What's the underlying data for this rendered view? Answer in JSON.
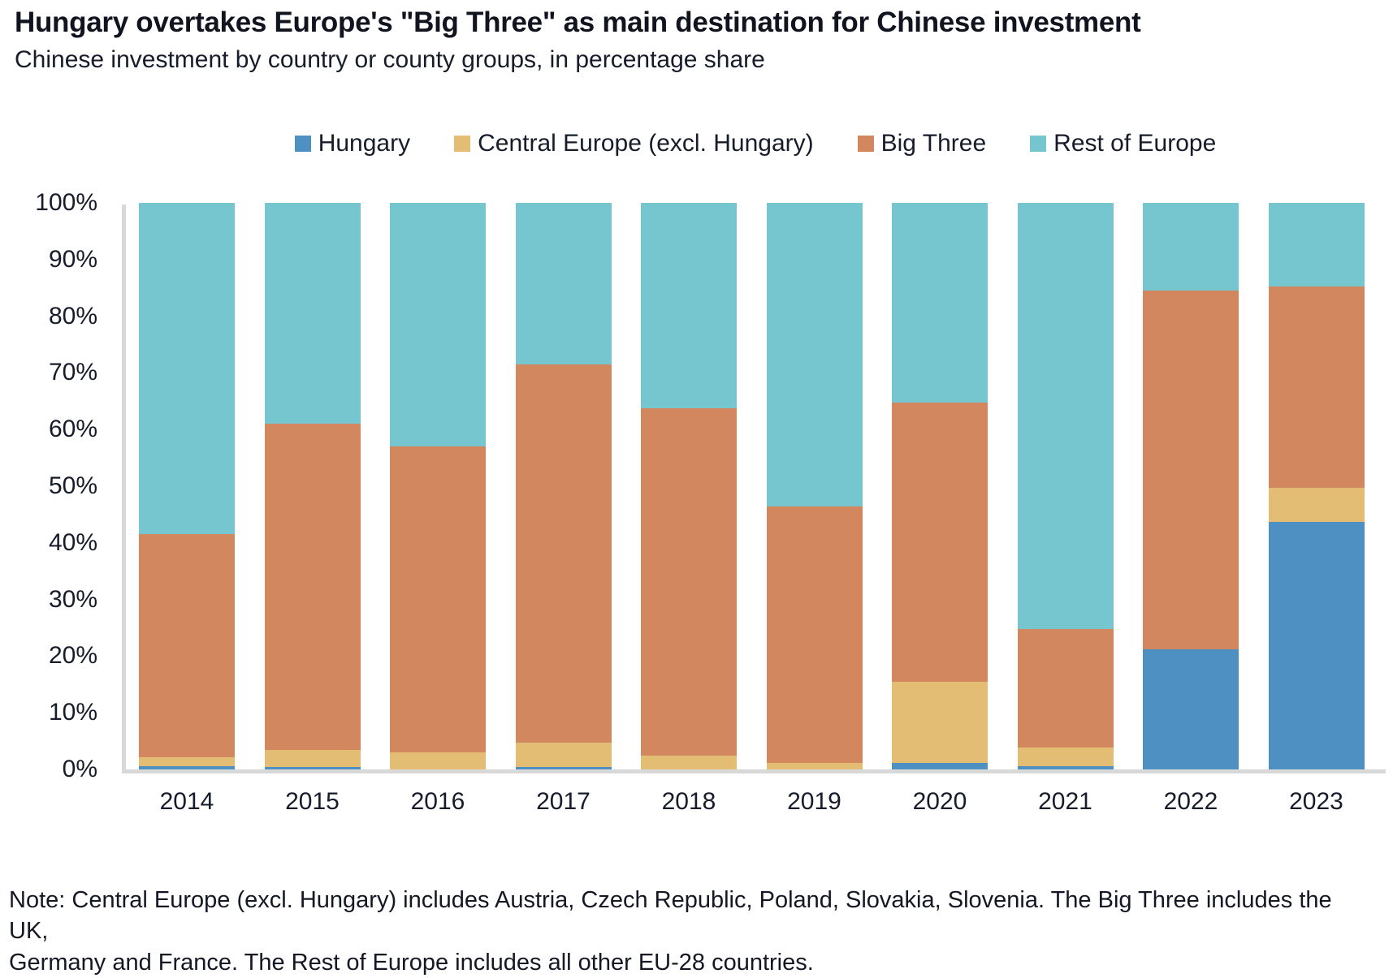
{
  "title": "Hungary overtakes Europe's \"Big Three\" as main destination for Chinese investment",
  "subtitle": "Chinese investment by country or county groups, in percentage share",
  "note": {
    "line1": "Note: Central Europe (excl. Hungary) includes Austria, Czech Republic, Poland, Slovakia, Slovenia. The Big Three includes the UK,",
    "line2": "Germany and France. The Rest of Europe includes all other EU-28 countries."
  },
  "colors": {
    "hungary": "#4f90c3",
    "central_europe": "#e2bd73",
    "big_three": "#d2875f",
    "rest_of_europe": "#75c6ce",
    "axis_line": "#d8d8d8",
    "text": "#171c2b"
  },
  "chart_data": {
    "type": "bar",
    "stacked": true,
    "title": "Hungary overtakes Europe's \"Big Three\" as main destination for Chinese investment",
    "xlabel": "",
    "ylabel": "",
    "ylim": [
      0,
      100
    ],
    "grid": false,
    "legend_position": "top",
    "yticks": [
      "0%",
      "10%",
      "20%",
      "30%",
      "40%",
      "50%",
      "60%",
      "70%",
      "80%",
      "90%",
      "100%"
    ],
    "categories": [
      "2014",
      "2015",
      "2016",
      "2017",
      "2018",
      "2019",
      "2020",
      "2021",
      "2022",
      "2023"
    ],
    "series": [
      {
        "name": "Hungary",
        "color": "#4f90c3",
        "values": [
          0.6,
          0.5,
          0,
          0.5,
          0,
          0,
          1.1,
          0.6,
          21.2,
          43.7
        ]
      },
      {
        "name": "Central Europe (excl. Hungary)",
        "color": "#e2bd73",
        "values": [
          1.5,
          3.0,
          3.0,
          4.2,
          2.5,
          1.2,
          14.4,
          3.2,
          0,
          6.0
        ]
      },
      {
        "name": "Big Three",
        "color": "#d2875f",
        "values": [
          39.4,
          57.5,
          54.0,
          66.8,
          61.3,
          45.2,
          49.2,
          21.0,
          63.3,
          35.5
        ]
      },
      {
        "name": "Rest of Europe",
        "color": "#75c6ce",
        "values": [
          58.5,
          39.0,
          43.0,
          28.5,
          36.2,
          53.6,
          35.3,
          75.2,
          15.5,
          14.8
        ]
      }
    ]
  }
}
